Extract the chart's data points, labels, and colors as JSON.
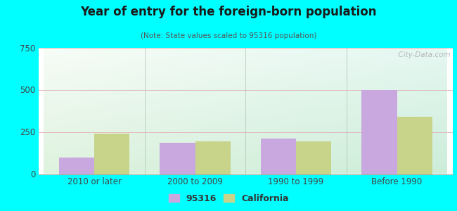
{
  "title": "Year of entry for the foreign-born population",
  "subtitle": "(Note: State values scaled to 95316 population)",
  "categories": [
    "2010 or later",
    "2000 to 2009",
    "1990 to 1999",
    "Before 1990"
  ],
  "values_95316": [
    100,
    185,
    210,
    500
  ],
  "values_california": [
    240,
    195,
    195,
    340
  ],
  "color_95316": "#c9a8e0",
  "color_california": "#c8d48a",
  "ylim": [
    0,
    750
  ],
  "yticks": [
    0,
    250,
    500,
    750
  ],
  "background_outer": "#00ffff",
  "bar_width": 0.35,
  "legend_label_95316": "95316",
  "legend_label_california": "California",
  "watermark": "  City-Data.com"
}
